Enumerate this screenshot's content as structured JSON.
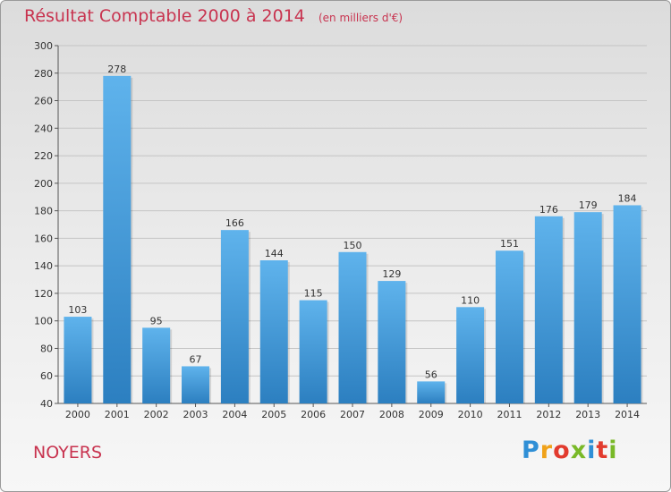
{
  "header": {
    "title": "Résultat Comptable 2000 à 2014",
    "unit": "(en milliers d'€)"
  },
  "footer": {
    "town": "NOYERS",
    "logo_letters": [
      "P",
      "r",
      "o",
      "x",
      "i",
      "t",
      "i"
    ],
    "logo_colors": [
      "#2f8fd6",
      "#f0a21a",
      "#e23b2e",
      "#79b928",
      "#2f8fd6",
      "#e23b2e",
      "#79b928"
    ]
  },
  "colors": {
    "title": "#c8334f",
    "bar_light": "#5fb3ec",
    "bar_dark": "#2c7fc0",
    "grid": "#c4c4c4"
  },
  "chart_data": {
    "type": "bar",
    "title": "Résultat Comptable 2000 à 2014",
    "subtitle": "(en milliers d'€)",
    "categories": [
      "2000",
      "2001",
      "2002",
      "2003",
      "2004",
      "2005",
      "2006",
      "2007",
      "2008",
      "2009",
      "2010",
      "2011",
      "2012",
      "2013",
      "2014"
    ],
    "values": [
      103,
      278,
      95,
      67,
      166,
      144,
      115,
      150,
      129,
      56,
      110,
      151,
      176,
      179,
      184
    ],
    "ylim": [
      40,
      300
    ],
    "yticks": [
      40,
      60,
      80,
      100,
      120,
      140,
      160,
      180,
      200,
      220,
      240,
      260,
      280,
      300
    ],
    "grid": true,
    "data_labels": true
  }
}
